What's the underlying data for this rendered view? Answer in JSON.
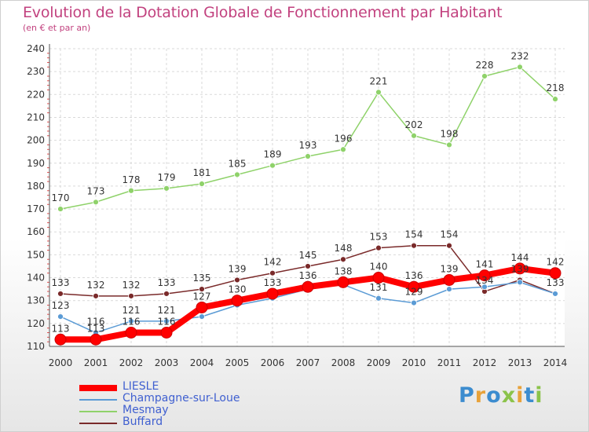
{
  "chart_data": {
    "type": "line",
    "title": "Evolution de la Dotation Globale de Fonctionnement par Habitant",
    "subtitle": "(en € et par an)",
    "x": [
      "2000",
      "2001",
      "2002",
      "2003",
      "2004",
      "2005",
      "2006",
      "2007",
      "2008",
      "2009",
      "2010",
      "2011",
      "2012",
      "2013",
      "2014"
    ],
    "ylim": [
      110,
      240
    ],
    "yticks": [
      "110",
      "120",
      "130",
      "140",
      "150",
      "160",
      "170",
      "180",
      "190",
      "200",
      "210",
      "220",
      "230",
      "240"
    ],
    "grid": true,
    "legend_position": "bottom-left",
    "series": [
      {
        "name": "LIESLE",
        "color": "#ff0000",
        "values": [
          113,
          113,
          116,
          116,
          127,
          130,
          133,
          136,
          138,
          140,
          136,
          139,
          141,
          144,
          142
        ],
        "labels": [
          "113",
          "113",
          "116",
          "116",
          "127",
          "130",
          "133",
          "136",
          "138",
          "140",
          "136",
          "139",
          "141",
          "144",
          "142"
        ]
      },
      {
        "name": "Champagne-sur-Loue",
        "color": "#5b9bd5",
        "values": [
          123,
          116,
          121,
          121,
          123,
          128,
          131,
          135,
          137,
          131,
          129,
          135,
          136,
          138,
          133
        ],
        "labels": [
          "123",
          "116",
          "121",
          "121",
          "",
          "",
          "",
          "",
          "",
          "131",
          "129",
          "",
          "",
          "",
          ""
        ]
      },
      {
        "name": "Mesmay",
        "color": "#8fd26a",
        "values": [
          170,
          173,
          178,
          179,
          181,
          185,
          189,
          193,
          196,
          221,
          202,
          198,
          228,
          232,
          218
        ],
        "labels": [
          "170",
          "173",
          "178",
          "179",
          "181",
          "185",
          "189",
          "193",
          "196",
          "221",
          "202",
          "198",
          "228",
          "232",
          "218"
        ]
      },
      {
        "name": "Buffard",
        "color": "#7a2a2a",
        "values": [
          133,
          132,
          132,
          133,
          135,
          139,
          142,
          145,
          148,
          153,
          154,
          154,
          134,
          139,
          133
        ],
        "labels": [
          "133",
          "132",
          "132",
          "133",
          "135",
          "139",
          "142",
          "145",
          "148",
          "153",
          "154",
          "154",
          "134",
          "139",
          "133"
        ]
      }
    ]
  },
  "brand": {
    "letters": [
      "P",
      "r",
      "o",
      "x",
      "i",
      "t",
      "i"
    ],
    "colors": [
      "#3c8ccf",
      "#e8a23a",
      "#3c8ccf",
      "#8bc34a",
      "#e8a23a",
      "#3c8ccf",
      "#8bc34a"
    ]
  }
}
